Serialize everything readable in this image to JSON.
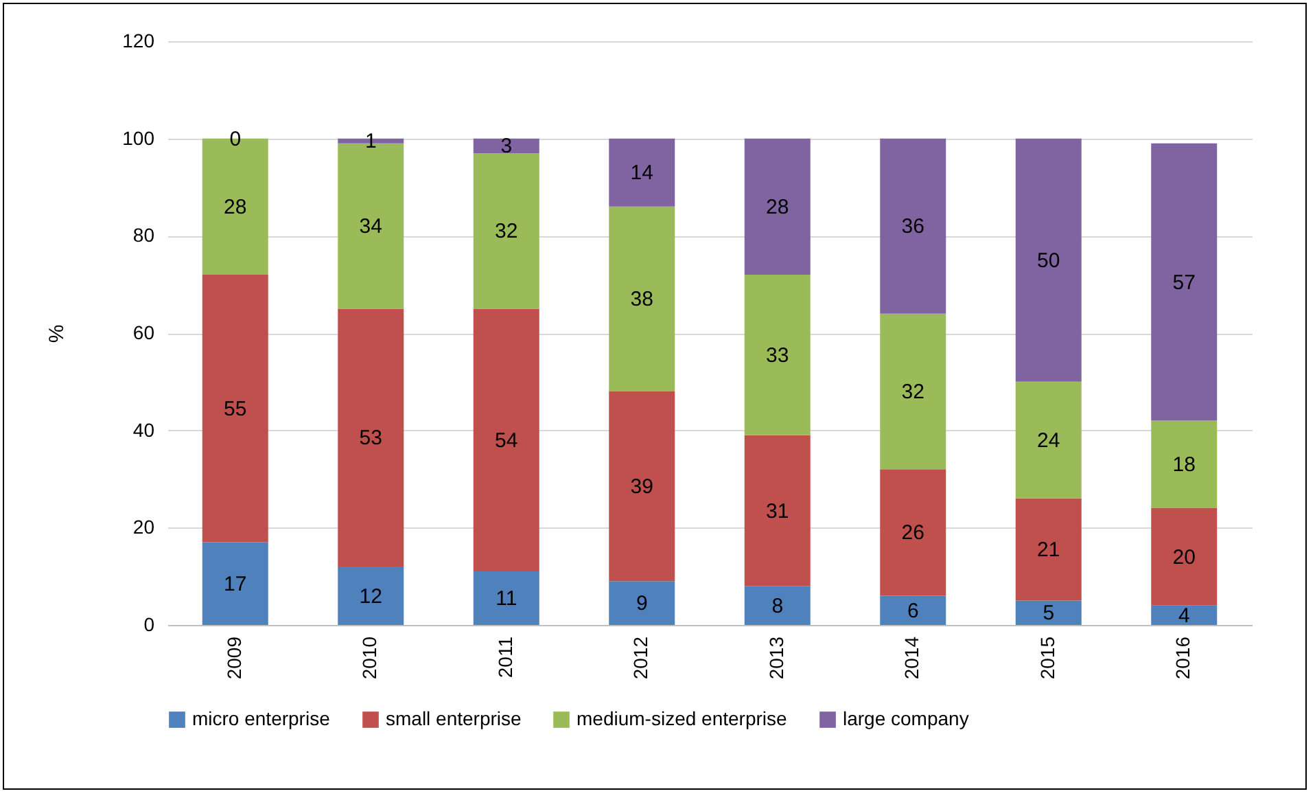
{
  "chart_data": {
    "type": "bar",
    "stacked": true,
    "ylabel": "%",
    "categories": [
      "2009",
      "2010",
      "2011",
      "2012",
      "2013",
      "2014",
      "2015",
      "2016"
    ],
    "series": [
      {
        "name": "micro enterprise",
        "color": "#4f81bd",
        "values": [
          17,
          12,
          11,
          9,
          8,
          6,
          5,
          4
        ]
      },
      {
        "name": "small enterprise",
        "color": "#c0504d",
        "values": [
          55,
          53,
          54,
          39,
          31,
          26,
          21,
          20
        ]
      },
      {
        "name": "medium-sized enterprise",
        "color": "#9bbb59",
        "values": [
          28,
          34,
          32,
          38,
          33,
          32,
          24,
          18
        ]
      },
      {
        "name": "large company",
        "color": "#8064a2",
        "values": [
          0,
          1,
          3,
          14,
          28,
          36,
          50,
          57
        ]
      }
    ],
    "ylim": [
      0,
      120
    ],
    "yticks": [
      0,
      20,
      40,
      60,
      80,
      100,
      120
    ],
    "grid": "y",
    "legend": "bottom",
    "data_labels": true
  }
}
